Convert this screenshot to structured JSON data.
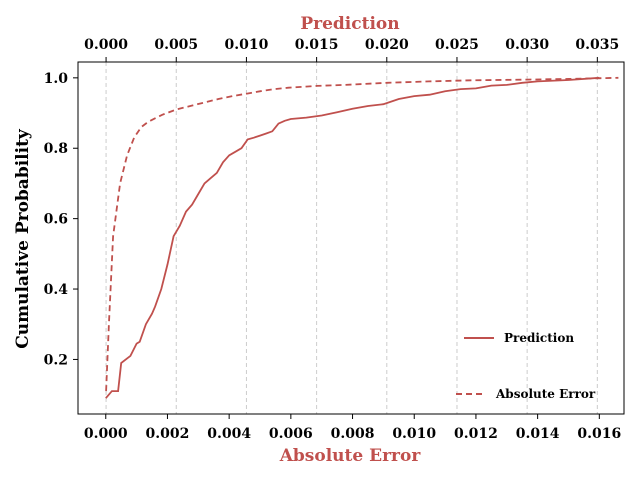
{
  "chart_data": {
    "type": "line",
    "title": "",
    "xlabel": "Absolute Error",
    "x2label": "Prediction",
    "ylabel": "Cumulative Probability",
    "xlim": [
      -0.0009,
      0.0168
    ],
    "x2lim": [
      -0.002,
      0.0369
    ],
    "ylim": [
      0.045,
      1.045
    ],
    "xticks": [
      "0.000",
      "0.002",
      "0.004",
      "0.006",
      "0.008",
      "0.010",
      "0.012",
      "0.014",
      "0.016"
    ],
    "x2ticks": [
      "0.000",
      "0.005",
      "0.010",
      "0.015",
      "0.020",
      "0.025",
      "0.030",
      "0.035"
    ],
    "yticks": [
      "0.2",
      "0.4",
      "0.6",
      "0.8",
      "1.0"
    ],
    "grid": "vertical dashed (top axis)",
    "colors": {
      "line": "#c0504d",
      "grid": "#cccccc",
      "title_accent": "#c0504d"
    },
    "series": [
      {
        "name": "Prediction",
        "style": "solid",
        "axis": "bottom",
        "points": [
          [
            0.0,
            0.09
          ],
          [
            0.0002,
            0.11
          ],
          [
            0.0004,
            0.11
          ],
          [
            0.0005,
            0.19
          ],
          [
            0.0008,
            0.21
          ],
          [
            0.001,
            0.245
          ],
          [
            0.0011,
            0.25
          ],
          [
            0.0013,
            0.3
          ],
          [
            0.0015,
            0.33
          ],
          [
            0.0016,
            0.35
          ],
          [
            0.0018,
            0.4
          ],
          [
            0.002,
            0.47
          ],
          [
            0.0022,
            0.55
          ],
          [
            0.0024,
            0.58
          ],
          [
            0.0026,
            0.62
          ],
          [
            0.0028,
            0.64
          ],
          [
            0.003,
            0.67
          ],
          [
            0.0032,
            0.7
          ],
          [
            0.0034,
            0.715
          ],
          [
            0.0036,
            0.73
          ],
          [
            0.0038,
            0.76
          ],
          [
            0.004,
            0.78
          ],
          [
            0.0042,
            0.79
          ],
          [
            0.0044,
            0.8
          ],
          [
            0.0046,
            0.825
          ],
          [
            0.0048,
            0.83
          ],
          [
            0.005,
            0.836
          ],
          [
            0.0052,
            0.842
          ],
          [
            0.0054,
            0.848
          ],
          [
            0.0056,
            0.87
          ],
          [
            0.0058,
            0.878
          ],
          [
            0.006,
            0.883
          ],
          [
            0.0065,
            0.887
          ],
          [
            0.007,
            0.893
          ],
          [
            0.0075,
            0.902
          ],
          [
            0.008,
            0.912
          ],
          [
            0.0085,
            0.92
          ],
          [
            0.009,
            0.925
          ],
          [
            0.0095,
            0.94
          ],
          [
            0.01,
            0.948
          ],
          [
            0.0105,
            0.952
          ],
          [
            0.011,
            0.962
          ],
          [
            0.0115,
            0.968
          ],
          [
            0.012,
            0.97
          ],
          [
            0.0125,
            0.978
          ],
          [
            0.013,
            0.98
          ],
          [
            0.0135,
            0.986
          ],
          [
            0.014,
            0.99
          ],
          [
            0.015,
            0.994
          ],
          [
            0.016,
            1.0
          ]
        ]
      },
      {
        "name": "Absolute Error",
        "style": "dashed",
        "axis": "top",
        "points": [
          [
            0.0,
            0.11
          ],
          [
            0.0002,
            0.3
          ],
          [
            0.0005,
            0.55
          ],
          [
            0.001,
            0.7
          ],
          [
            0.0015,
            0.78
          ],
          [
            0.002,
            0.83
          ],
          [
            0.0025,
            0.86
          ],
          [
            0.003,
            0.875
          ],
          [
            0.004,
            0.895
          ],
          [
            0.005,
            0.91
          ],
          [
            0.006,
            0.92
          ],
          [
            0.007,
            0.93
          ],
          [
            0.008,
            0.94
          ],
          [
            0.009,
            0.948
          ],
          [
            0.01,
            0.955
          ],
          [
            0.011,
            0.962
          ],
          [
            0.012,
            0.968
          ],
          [
            0.013,
            0.972
          ],
          [
            0.015,
            0.977
          ],
          [
            0.017,
            0.98
          ],
          [
            0.02,
            0.986
          ],
          [
            0.023,
            0.99
          ],
          [
            0.026,
            0.993
          ],
          [
            0.03,
            0.995
          ],
          [
            0.033,
            0.997
          ],
          [
            0.0365,
            1.0
          ]
        ]
      }
    ],
    "legend": {
      "position": "bottom-right",
      "entries": [
        "Prediction",
        "Absolute Error"
      ]
    }
  }
}
